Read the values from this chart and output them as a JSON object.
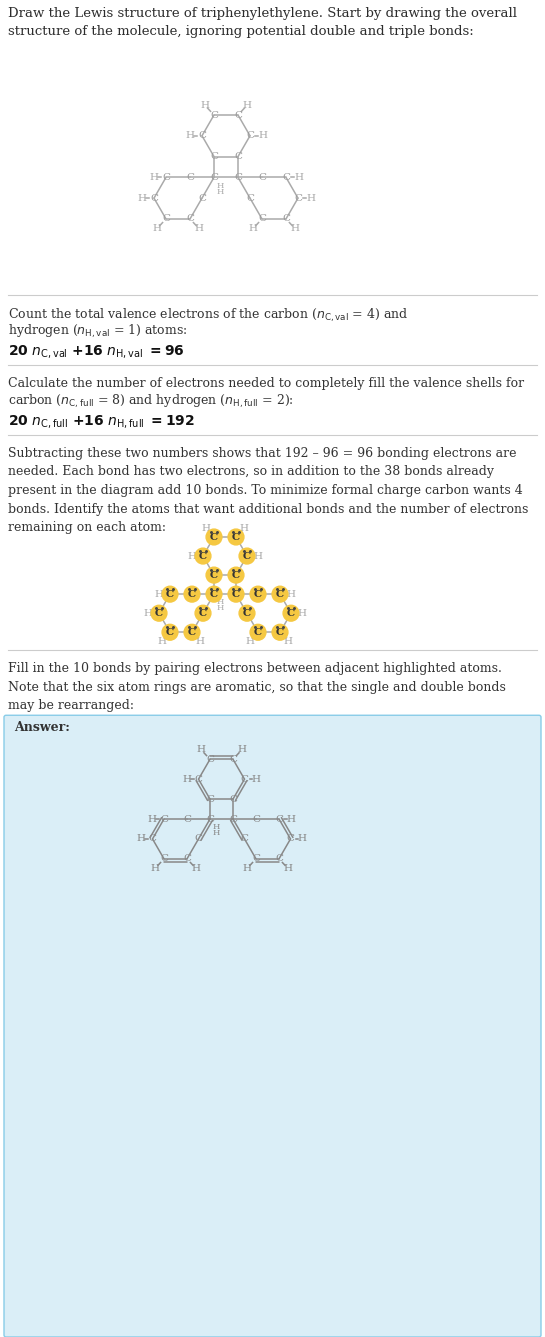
{
  "bg_color": "#ffffff",
  "answer_bg": "#daeef7",
  "text_color": "#333333",
  "bond_color_plain": "#aaaaaa",
  "bond_color_answer": "#888888",
  "highlight_color": "#f5c842",
  "title": "Draw the Lewis structure of triphenylethylene. Start by drawing the overall\nstructure of the molecule, ignoring potential double and triple bonds:",
  "sec2_line1": "Count the total valence electrons of the carbon (",
  "sec2_line2": " = 1) atoms:",
  "sec2_eq": "20 ",
  "sec3_line1": "Calculate the number of electrons needed to completely fill the valence shells for",
  "sec3_line2": "carbon (",
  "sec3_eq": "20 ",
  "sec4": "Subtracting these two numbers shows that 192 – 96 = 96 bonding electrons are\nneeded. Each bond has two electrons, so in addition to the 38 bonds already\npresent in the diagram add 10 bonds. To minimize formal charge carbon wants 4\nbonds. Identify the atoms that want additional bonds and the number of electrons\nremaining on each atom:",
  "fill_text": "Fill in the 10 bonds by pairing electrons between adjacent highlighted atoms.\nNote that the six atom rings are aromatic, so that the single and double bonds\nmay be rearranged:",
  "answer_label": "Answer:"
}
